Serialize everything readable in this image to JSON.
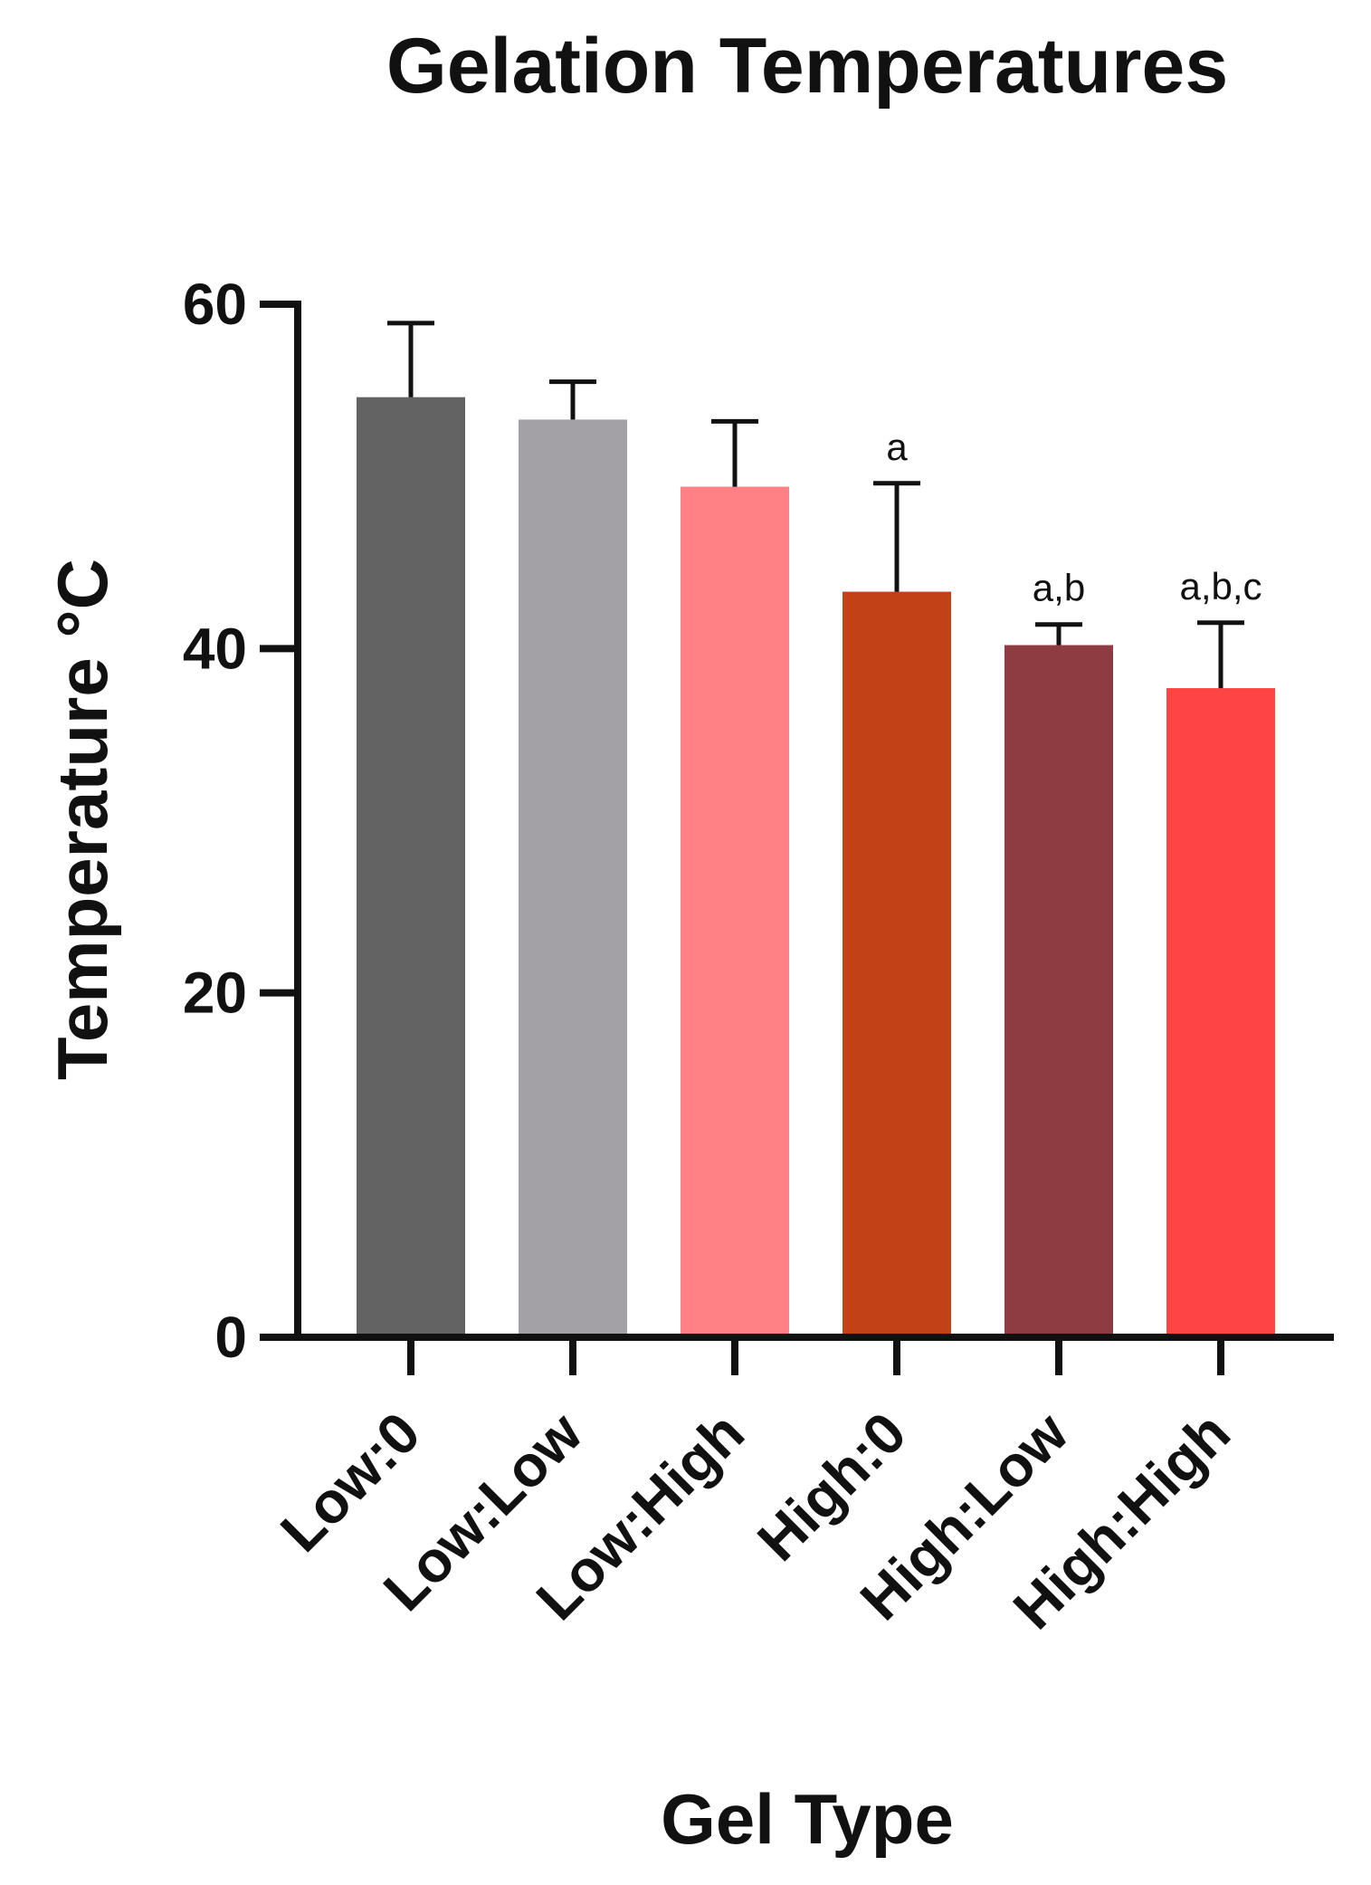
{
  "chart_data": {
    "type": "bar",
    "title": "Gelation Temperatures",
    "xlabel": "Gel Type",
    "ylabel": "Temperature °C",
    "categories": [
      "Low:0",
      "Low:Low",
      "Low:High",
      "High:0",
      "High:Low",
      "High:High"
    ],
    "values": [
      54.6,
      53.3,
      49.4,
      43.3,
      40.2,
      37.7
    ],
    "error_upper": [
      58.9,
      55.5,
      53.2,
      49.6,
      41.4,
      41.5
    ],
    "annotations": [
      "",
      "",
      "",
      "a",
      "a,b",
      "a,b,c"
    ],
    "colors": [
      "#636363",
      "#a3a1a5",
      "#ff8085",
      "#c24116",
      "#8e3b42",
      "#ff4444"
    ],
    "ylim": [
      0,
      60
    ],
    "yticks": [
      0,
      20,
      40,
      60
    ],
    "grid": false
  }
}
